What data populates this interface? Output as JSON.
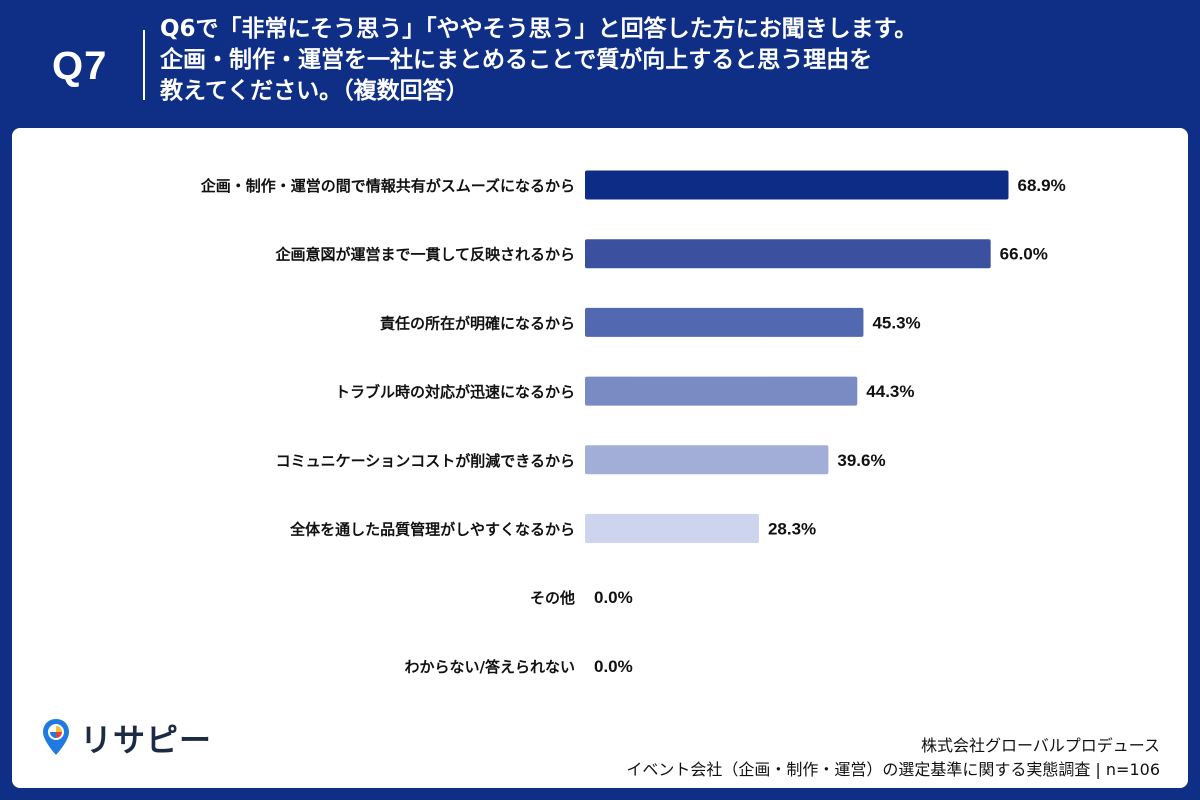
{
  "header": {
    "badge": "Q7",
    "question_lines": [
      "Q6で「非常にそう思う」「ややそう思う」と回答した方にお聞きします。",
      "企画・制作・運営を一社にまとめることで質が向上すると思う理由を",
      "教えてください。（複数回答）"
    ]
  },
  "logo": {
    "text": "リサピー"
  },
  "footer": {
    "company": "株式会社グローバルプロデュース",
    "survey": "イベント会社（企画・制作・運営）の選定基準に関する実態調査 | n=106"
  },
  "colors": {
    "header_bg": "#0f2f86",
    "bars": [
      "#0d2c85",
      "#3b51a0",
      "#5268b0",
      "#7a8bc4",
      "#a2aed7",
      "#cdd4ee",
      "#cdd4ee",
      "#cdd4ee"
    ]
  },
  "chart_data": {
    "type": "bar",
    "orientation": "horizontal",
    "categories": [
      "企画・制作・運営の間で情報共有がスムーズになるから",
      "企画意図が運営まで一貫して反映されるから",
      "責任の所在が明確になるから",
      "トラブル時の対応が迅速になるから",
      "コミュニケーションコストが削減できるから",
      "全体を通した品質管理がしやすくなるから",
      "その他",
      "わからない/答えられない"
    ],
    "values": [
      68.9,
      66.0,
      45.3,
      44.3,
      39.6,
      28.3,
      0.0,
      0.0
    ],
    "value_labels": [
      "68.9%",
      "66.0%",
      "45.3%",
      "44.3%",
      "39.6%",
      "28.3%",
      "0.0%",
      "0.0%"
    ],
    "xlim": [
      0,
      75
    ],
    "grid": false,
    "legend": false
  }
}
